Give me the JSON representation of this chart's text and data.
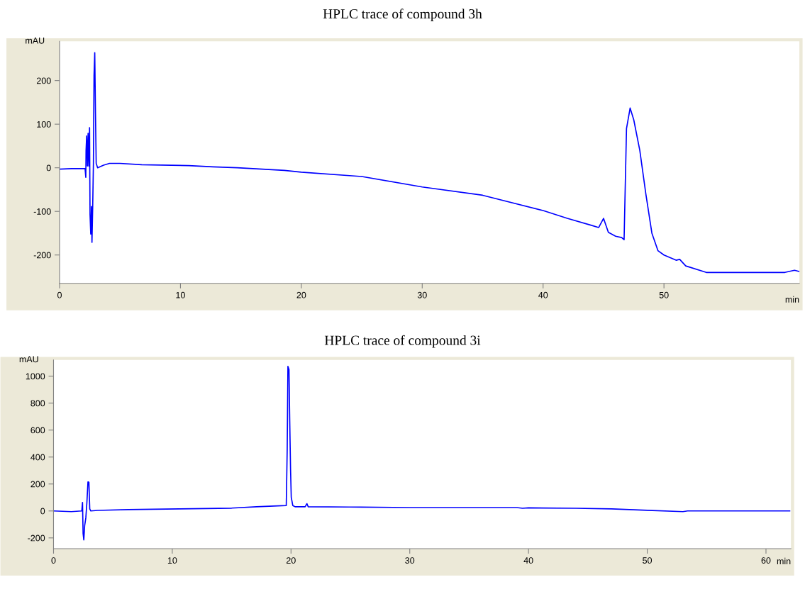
{
  "chart_data": [
    {
      "type": "line",
      "title": "HPLC trace of compound 3h",
      "xlabel": "min",
      "ylabel": "mAU",
      "xlim": [
        0,
        61.2
      ],
      "ylim": [
        -265,
        290
      ],
      "xticks": [
        0,
        10,
        20,
        30,
        40,
        50
      ],
      "yticks": [
        -200,
        -100,
        0,
        100,
        200
      ],
      "grid": false,
      "legend": false,
      "marker": "none",
      "line_style": "solid",
      "series": [
        {
          "color": "#0000ff",
          "x": [
            0,
            1.0,
            2.11,
            2.17,
            2.19,
            2.24,
            2.3,
            2.36,
            2.42,
            2.48,
            2.52,
            2.58,
            2.64,
            2.68,
            2.74,
            2.8,
            2.85,
            2.91,
            2.97,
            3.03,
            3.15,
            3.64,
            4.13,
            5.0,
            6.8,
            10.7,
            12.7,
            14.7,
            18.6,
            20,
            25,
            30,
            35,
            40,
            42,
            44,
            44.6,
            45.0,
            45.4,
            46,
            46.5,
            46.7,
            46.9,
            47.2,
            47.5,
            48,
            48.5,
            49,
            49.5,
            50,
            51,
            51.3,
            51.8,
            53.5,
            60,
            60.8,
            61.2
          ],
          "values": [
            -3,
            -2,
            -2,
            -22,
            39,
            73,
            4,
            79,
            4,
            92,
            -107,
            -152,
            -89,
            -171,
            -91,
            10,
            211,
            264,
            126,
            10,
            0,
            6,
            10,
            10,
            7,
            5,
            2,
            0,
            -6,
            -10,
            -20,
            -44,
            -63,
            -98,
            -116,
            -132,
            -137,
            -116,
            -148,
            -157,
            -160,
            -165,
            90,
            137,
            110,
            40,
            -60,
            -150,
            -190,
            -200,
            -212,
            -210,
            -225,
            -240,
            -240,
            -235,
            -238
          ]
        }
      ]
    },
    {
      "type": "line",
      "title": "HPLC trace of compound 3i",
      "xlabel": "min",
      "ylabel": "mAU",
      "xlim": [
        0,
        62.1
      ],
      "ylim": [
        -280,
        1120
      ],
      "xticks": [
        0,
        10,
        20,
        30,
        40,
        50,
        60
      ],
      "yticks": [
        -200,
        0,
        200,
        400,
        600,
        800,
        1000
      ],
      "grid": false,
      "legend": false,
      "marker": "none",
      "line_style": "solid",
      "series": [
        {
          "color": "#0000ff",
          "x": [
            0,
            1.5,
            2.38,
            2.44,
            2.49,
            2.55,
            2.62,
            2.72,
            2.81,
            2.9,
            2.98,
            3.05,
            3.14,
            3.72,
            6.3,
            10.6,
            15,
            17.1,
            19.6,
            19.68,
            19.74,
            19.83,
            19.89,
            19.96,
            20.02,
            20.15,
            20.37,
            21.19,
            21.34,
            21.45,
            24.9,
            30,
            39,
            39.5,
            40,
            44,
            47,
            50,
            53,
            53.4,
            62
          ],
          "values": [
            0,
            -5,
            0,
            63,
            -167,
            -215,
            -109,
            -52,
            63,
            216,
            213,
            15,
            0,
            4,
            10,
            15,
            21,
            31,
            40,
            465,
            1073,
            1050,
            676,
            312,
            101,
            40,
            31,
            31,
            54,
            31,
            29,
            25,
            25,
            20,
            23,
            20,
            15,
            5,
            -5,
            0,
            0
          ]
        }
      ]
    }
  ]
}
